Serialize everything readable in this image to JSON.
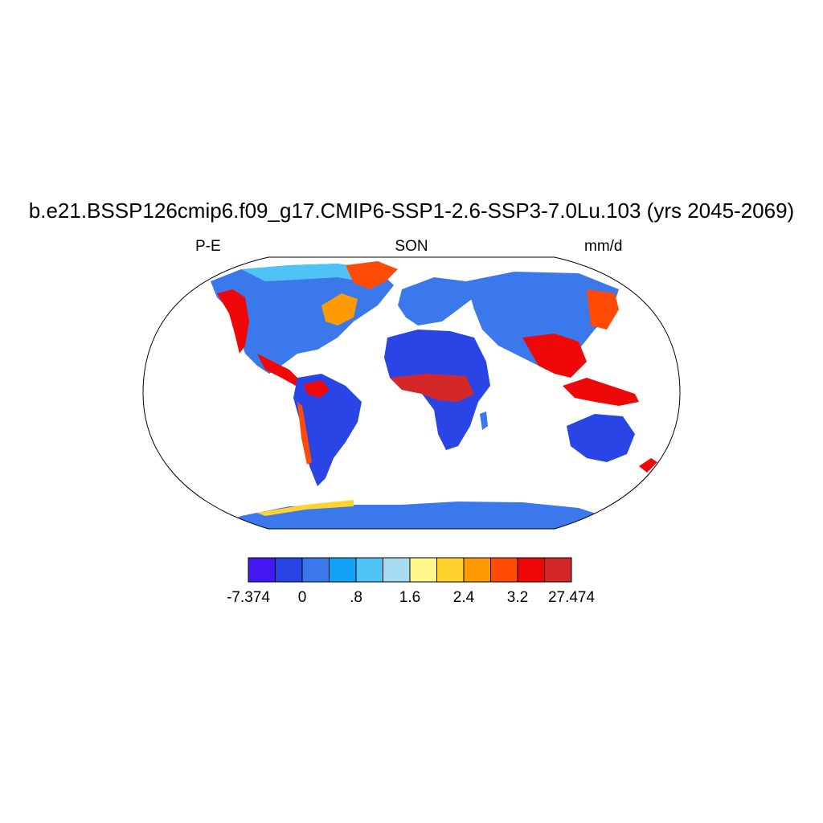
{
  "title": "b.e21.BSSP126cmip6.f09_g17.CMIP6-SSP1-2.6-SSP3-7.0Lu.103 (yrs 2045-2069)",
  "left_label": "P-E",
  "center_label": "SON",
  "right_label": "mm/d",
  "colorbar": {
    "colors": [
      "#4417f5",
      "#2a45e6",
      "#3a78ec",
      "#13a2f6",
      "#4fc3f5",
      "#a8dcf2",
      "#fff68c",
      "#ffd22e",
      "#ff9a05",
      "#ff4b05",
      "#ee0808",
      "#d42828"
    ],
    "tick_labels": [
      "-7.374",
      "0",
      ".8",
      "1.6",
      "2.4",
      "3.2",
      "27.474"
    ]
  }
}
